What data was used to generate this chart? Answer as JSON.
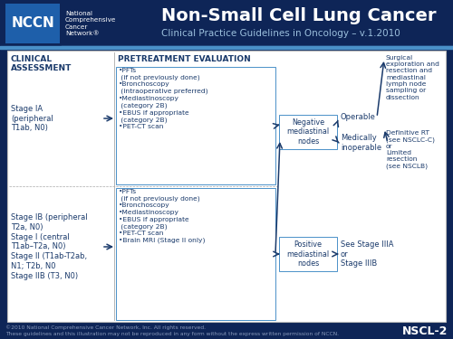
{
  "bg_dark": "#0e2557",
  "bg_light": "#ffffff",
  "blue_text": "#1a3a6b",
  "header_title": "Non-Small Cell Lung Cancer",
  "header_subtitle": "Clinical Practice Guidelines in Oncology – v.1.2010",
  "nccn_box_color": "#1e5faa",
  "nccn_label": "NCCN",
  "org_lines": "National\nComprehensive\nCancer\nNetwork®",
  "footer_line1": "©2010 National Comprehensive Cancer Network, Inc. All rights reserved.",
  "footer_line2": "These guidelines and this illustration may not be reproduced in any form without the express written permission of NCCN.",
  "footer_code": "NSCL-2",
  "section_clinical": "CLINICAL\nASSESSMENT",
  "section_pretreatment": "PRETREATMENT EVALUATION",
  "stage_ia": "Stage IA\n(peripheral\nT1ab, N0)",
  "stage_ib": "Stage IB (peripheral\nT2a, N0)\nStage I (central\nT1ab–T2a, N0)\nStage II (T1ab-T2ab,\nN1; T2b, N0\nStage IIB (T3, N0)",
  "eval_top": "•PFTs\n (if not previously done)\n•Bronchoscopy\n (intraoperative preferred)\n•Mediastinoscopy\n (category 2B)\n•EBUS if appropriate\n (category 2B)\n•PET-CT scan",
  "eval_bottom": "•PFTs\n (if not previously done)\n•Bronchoscopy\n•Mediastinoscopy\n•EBUS if appropriate\n (category 2B)\n•PET-CT scan\n•Brain MRI (Stage II only)",
  "neg_nodes": "Negative\nmediastinal\nnodes",
  "pos_nodes": "Positive\nmediastinal\nnodes",
  "operable": "Operable",
  "med_inoperable": "Medically\ninoperable",
  "surgical": "Surgical\nexploration and\nresection and\nmediastinal\nlymph node\nsampling or\ndissection",
  "definitive_rt": "Definitive RT\n(see NSCLC-C)\nor\nLimited\nresection\n(see NSCLB)",
  "see_stage": "See Stage IIIA\nor\nStage IIIB",
  "accent_line_color": "#4a90c8"
}
